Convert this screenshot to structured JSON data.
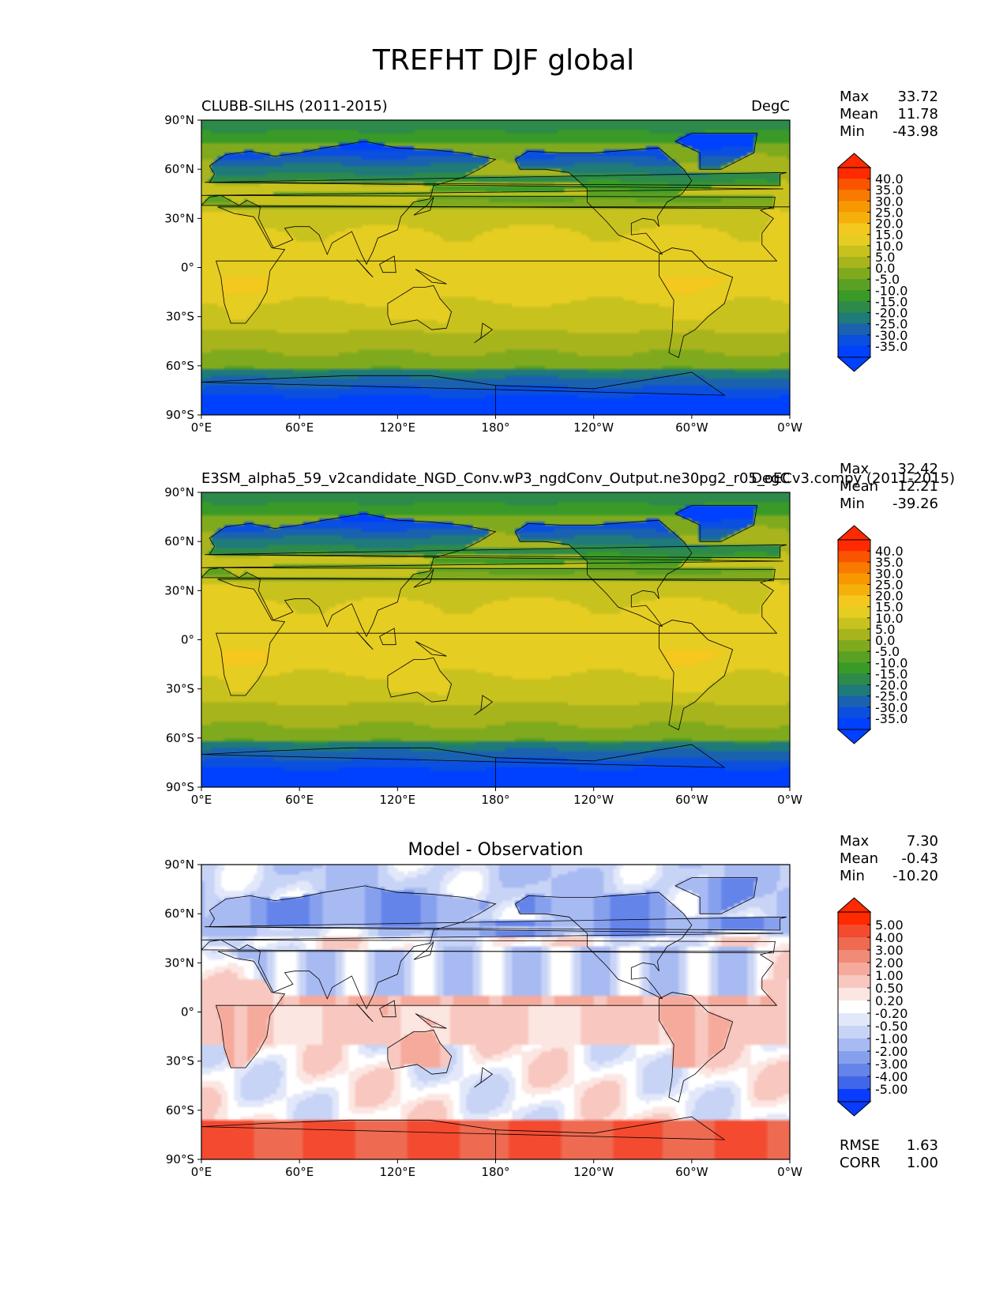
{
  "figure": {
    "title": "TREFHT DJF global"
  },
  "axes": {
    "lon_ticks": [
      "0°E",
      "60°E",
      "120°E",
      "180°",
      "120°W",
      "60°W",
      "0°W"
    ],
    "lat_ticks": [
      "90°N",
      "60°N",
      "30°N",
      "0°",
      "30°S",
      "60°S",
      "90°S"
    ]
  },
  "panels": [
    {
      "id": "test",
      "left_title": "CLUBB-SILHS (2011-2015)",
      "center_title": "",
      "right_title": "DegC",
      "stats": [
        {
          "label": "Max",
          "value": "33.72"
        },
        {
          "label": "Mean",
          "value": "11.78"
        },
        {
          "label": "Min",
          "value": "-43.98"
        }
      ],
      "colorbar": {
        "labels": [
          "40.0",
          "35.0",
          "30.0",
          "25.0",
          "20.0",
          "15.0",
          "10.0",
          "5.0",
          "0.0",
          "-5.0",
          "-10.0",
          "-15.0",
          "-20.0",
          "-25.0",
          "-30.0",
          "-35.0"
        ],
        "colors": [
          "#ff2a00",
          "#fa5400",
          "#f87a00",
          "#f79800",
          "#f6b00c",
          "#f4c81e",
          "#e6cd22",
          "#c8c21e",
          "#a8b41c",
          "#80aa1e",
          "#5aa022",
          "#3a9a28",
          "#2d8a4a",
          "#1f7a7a",
          "#1a62b0",
          "#0a4fe0",
          "#0040ff"
        ]
      },
      "field": "abs"
    },
    {
      "id": "reference",
      "left_title": "E3SM_alpha5_59_v2candidate_NGD_Conv.wP3_ngdConv_Output.ne30pg2_r05_oECv3.compy (2011-2015)",
      "center_title": "",
      "right_title": "DegC",
      "stats": [
        {
          "label": "Max",
          "value": "32.42"
        },
        {
          "label": "Mean",
          "value": "12.21"
        },
        {
          "label": "Min",
          "value": "-39.26"
        }
      ],
      "colorbar": {
        "labels": [
          "40.0",
          "35.0",
          "30.0",
          "25.0",
          "20.0",
          "15.0",
          "10.0",
          "5.0",
          "0.0",
          "-5.0",
          "-10.0",
          "-15.0",
          "-20.0",
          "-25.0",
          "-30.0",
          "-35.0"
        ],
        "colors": [
          "#ff2a00",
          "#fa5400",
          "#f87a00",
          "#f79800",
          "#f6b00c",
          "#f4c81e",
          "#e6cd22",
          "#c8c21e",
          "#a8b41c",
          "#80aa1e",
          "#5aa022",
          "#3a9a28",
          "#2d8a4a",
          "#1f7a7a",
          "#1a62b0",
          "#0a4fe0",
          "#0040ff"
        ]
      },
      "field": "abs"
    },
    {
      "id": "diff",
      "left_title": "",
      "center_title": "Model - Observation",
      "right_title": "",
      "stats": [
        {
          "label": "Max",
          "value": "7.30"
        },
        {
          "label": "Mean",
          "value": "-0.43"
        },
        {
          "label": "Min",
          "value": "-10.20"
        }
      ],
      "extra_stats": [
        {
          "label": "RMSE",
          "value": "1.63"
        },
        {
          "label": "CORR",
          "value": "1.00"
        }
      ],
      "colorbar": {
        "labels": [
          "5.00",
          "4.00",
          "3.00",
          "2.00",
          "1.00",
          "0.50",
          "0.20",
          "-0.20",
          "-0.50",
          "-1.00",
          "-2.00",
          "-3.00",
          "-4.00",
          "-5.00"
        ],
        "colors": [
          "#ff2a00",
          "#f44a30",
          "#ee6a50",
          "#f28a78",
          "#f5aa9c",
          "#f8c8c0",
          "#fce6e2",
          "#ffffff",
          "#e2e8fa",
          "#c8d4f6",
          "#a8baf2",
          "#86a0ee",
          "#6484ea",
          "#4066ea",
          "#0a3cff"
        ]
      },
      "field": "diff"
    }
  ]
}
